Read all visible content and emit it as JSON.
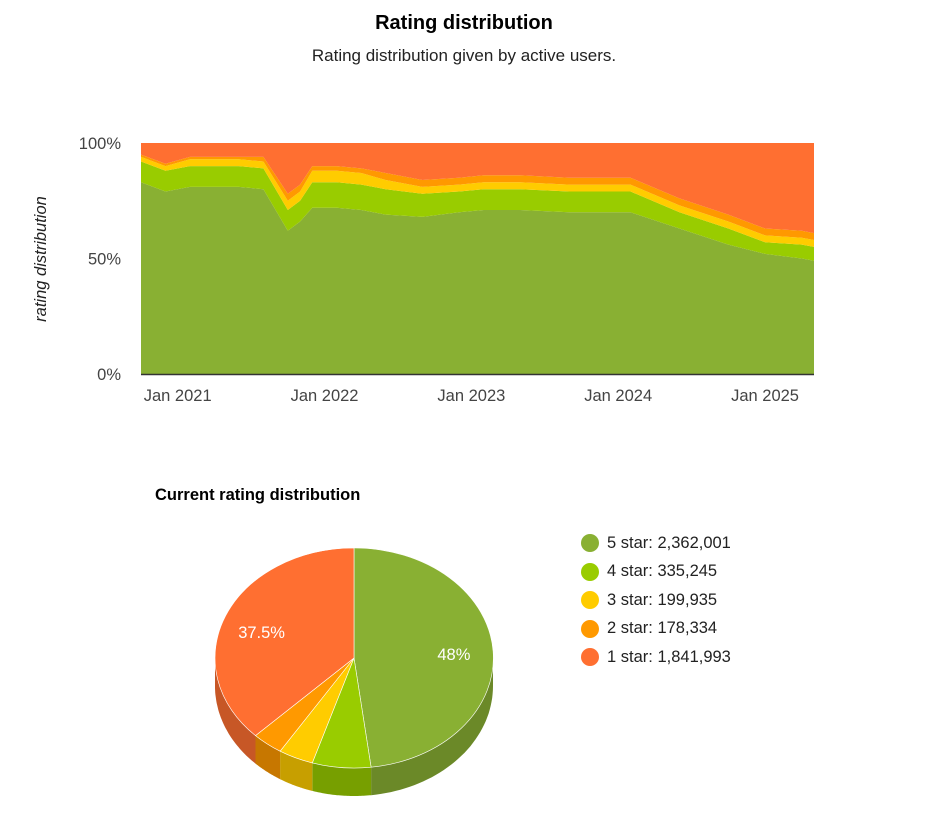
{
  "header": {
    "title": "Rating distribution",
    "subtitle": "Rating distribution given by active users."
  },
  "chart_data": [
    {
      "type": "area",
      "stacked": "percent",
      "ylabel": "rating distribution",
      "y_ticks": [
        "0%",
        "50%",
        "100%"
      ],
      "x_ticks": [
        "Jan 2021",
        "Jan 2022",
        "Jan 2023",
        "Jan 2024",
        "Jan 2025"
      ],
      "ylim": [
        0,
        100
      ],
      "x": [
        "2020-10",
        "2020-12",
        "2021-02",
        "2021-04",
        "2021-06",
        "2021-08",
        "2021-10",
        "2021-11",
        "2021-12",
        "2022-02",
        "2022-04",
        "2022-06",
        "2022-09",
        "2022-12",
        "2023-02",
        "2023-05",
        "2023-09",
        "2023-12",
        "2024-02",
        "2024-06",
        "2024-10",
        "2025-01",
        "2025-04",
        "2025-05"
      ],
      "series": [
        {
          "name": "5 star",
          "color": "#89b033",
          "values": [
            83,
            79,
            81,
            81,
            81,
            80,
            62,
            66,
            72,
            72,
            71,
            69,
            68,
            70,
            71,
            71,
            70,
            70,
            70,
            63,
            56,
            52,
            50,
            49
          ]
        },
        {
          "name": "4 star",
          "color": "#99cc00",
          "values": [
            9,
            9,
            9,
            9,
            9,
            9,
            9,
            9,
            11,
            11,
            11,
            11,
            10,
            9,
            9,
            9,
            9,
            9,
            9,
            7,
            7,
            5,
            6,
            6
          ]
        },
        {
          "name": "3 star",
          "color": "#ffcc00",
          "values": [
            2,
            2,
            3,
            3,
            3,
            3,
            4,
            4,
            5,
            5,
            5,
            4,
            3,
            3,
            3,
            3,
            3,
            3,
            3,
            3,
            3,
            3,
            3,
            3
          ]
        },
        {
          "name": "2 star",
          "color": "#ff9900",
          "values": [
            1,
            1,
            1,
            1,
            1,
            2,
            3,
            3,
            2,
            2,
            2,
            3,
            3,
            3,
            3,
            3,
            3,
            3,
            3,
            3,
            3,
            3,
            3,
            3
          ]
        },
        {
          "name": "1 star",
          "color": "#ff6f31",
          "values": [
            5,
            9,
            6,
            6,
            6,
            6,
            22,
            18,
            10,
            10,
            11,
            13,
            16,
            15,
            14,
            14,
            15,
            15,
            15,
            24,
            31,
            37,
            38,
            39
          ]
        }
      ]
    },
    {
      "type": "pie",
      "title": "Current rating distribution",
      "series": [
        {
          "name": "5 star",
          "value": 2362001,
          "value_label": "2,362,001",
          "color": "#89b033",
          "data_label": "48%"
        },
        {
          "name": "4 star",
          "value": 335245,
          "value_label": "335,245",
          "color": "#99cc00",
          "data_label": ""
        },
        {
          "name": "3 star",
          "value": 199935,
          "value_label": "199,935",
          "color": "#ffcc00",
          "data_label": ""
        },
        {
          "name": "2 star",
          "value": 178334,
          "value_label": "178,334",
          "color": "#ff9900",
          "data_label": ""
        },
        {
          "name": "1 star",
          "value": 1841993,
          "value_label": "1,841,993",
          "color": "#ff6f31",
          "data_label": "37.5%"
        }
      ]
    }
  ]
}
